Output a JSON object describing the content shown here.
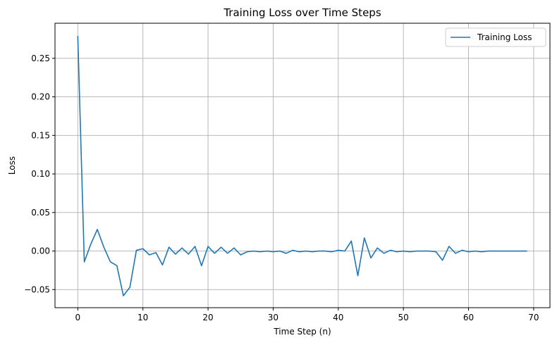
{
  "chart_data": {
    "type": "line",
    "title": "Training Loss over Time Steps",
    "xlabel": "Time Step (n)",
    "ylabel": "Loss",
    "xlim": [
      -3.5,
      72.5
    ],
    "ylim": [
      -0.0735,
      0.2955
    ],
    "xticks": [
      0,
      10,
      20,
      30,
      40,
      50,
      60,
      70
    ],
    "xtick_labels": [
      "0",
      "10",
      "20",
      "30",
      "40",
      "50",
      "60",
      "70"
    ],
    "yticks": [
      -0.05,
      0.0,
      0.05,
      0.1,
      0.15,
      0.2,
      0.25
    ],
    "ytick_labels": [
      "−0.05",
      "0.00",
      "0.05",
      "0.10",
      "0.15",
      "0.20",
      "0.25"
    ],
    "grid": true,
    "legend_position": "top-right",
    "series": [
      {
        "name": "Training Loss",
        "color": "#1f77b4",
        "x": [
          0,
          1,
          2,
          3,
          4,
          5,
          6,
          7,
          8,
          9,
          10,
          11,
          12,
          13,
          14,
          15,
          16,
          17,
          18,
          19,
          20,
          21,
          22,
          23,
          24,
          25,
          26,
          27,
          28,
          29,
          30,
          31,
          32,
          33,
          34,
          35,
          36,
          37,
          38,
          39,
          40,
          41,
          42,
          43,
          44,
          45,
          46,
          47,
          48,
          49,
          50,
          51,
          52,
          53,
          54,
          55,
          56,
          57,
          58,
          59,
          60,
          61,
          62,
          63,
          64,
          65,
          66,
          67,
          68,
          69
        ],
        "values": [
          0.279,
          -0.014,
          0.009,
          0.028,
          0.005,
          -0.014,
          -0.019,
          -0.058,
          -0.047,
          0.001,
          0.003,
          -0.005,
          -0.002,
          -0.018,
          0.005,
          -0.004,
          0.004,
          -0.004,
          0.006,
          -0.019,
          0.006,
          -0.003,
          0.005,
          -0.003,
          0.004,
          -0.005,
          -0.001,
          0.0,
          -0.001,
          0.0,
          -0.001,
          0.0,
          -0.003,
          0.001,
          -0.001,
          0.0,
          -0.001,
          0.0,
          0.0,
          -0.001,
          0.001,
          0.0,
          0.013,
          -0.032,
          0.017,
          -0.009,
          0.004,
          -0.003,
          0.001,
          -0.001,
          0.0,
          -0.001,
          0.0,
          0.0,
          0.0,
          -0.001,
          -0.012,
          0.006,
          -0.003,
          0.001,
          -0.001,
          0.0,
          -0.001,
          0.0,
          0.0,
          0.0,
          0.0,
          0.0,
          0.0,
          0.0
        ]
      }
    ]
  }
}
